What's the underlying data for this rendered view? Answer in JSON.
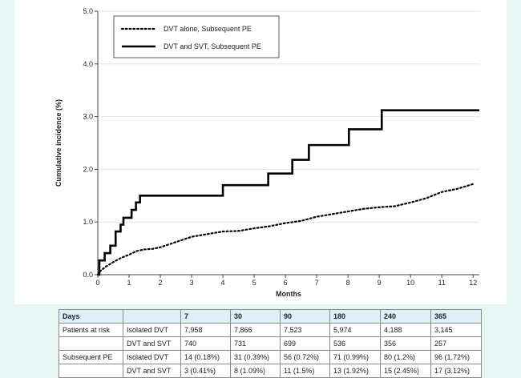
{
  "chart_data": {
    "type": "line",
    "xlabel": "Months",
    "ylabel": "Cumulative incidence (%)",
    "xlim": [
      0,
      12.2
    ],
    "ylim": [
      0,
      5.0
    ],
    "x_ticks": [
      "0",
      "1",
      "2",
      "3",
      "4",
      "5",
      "6",
      "7",
      "8",
      "9",
      "10",
      "11",
      "12"
    ],
    "y_ticks": [
      "0.0",
      "1.0",
      "2.0",
      "3.0",
      "4.0",
      "5.0"
    ],
    "legend_position": "top-left",
    "series": [
      {
        "name": "DVT alone, Subsequent PE",
        "style": "dotted",
        "color": "#000000",
        "points": [
          [
            0,
            0
          ],
          [
            0.1,
            0.08
          ],
          [
            0.25,
            0.15
          ],
          [
            0.5,
            0.24
          ],
          [
            0.75,
            0.32
          ],
          [
            1.0,
            0.38
          ],
          [
            1.25,
            0.45
          ],
          [
            1.5,
            0.48
          ],
          [
            1.75,
            0.49
          ],
          [
            2.0,
            0.52
          ],
          [
            2.5,
            0.62
          ],
          [
            3.0,
            0.72
          ],
          [
            3.5,
            0.77
          ],
          [
            4.0,
            0.82
          ],
          [
            4.5,
            0.83
          ],
          [
            5.0,
            0.88
          ],
          [
            5.5,
            0.92
          ],
          [
            6.0,
            0.98
          ],
          [
            6.5,
            1.02
          ],
          [
            7.0,
            1.1
          ],
          [
            7.5,
            1.15
          ],
          [
            8.0,
            1.2
          ],
          [
            8.5,
            1.25
          ],
          [
            9.0,
            1.28
          ],
          [
            9.5,
            1.3
          ],
          [
            10.0,
            1.37
          ],
          [
            10.5,
            1.45
          ],
          [
            11.0,
            1.57
          ],
          [
            11.5,
            1.63
          ],
          [
            12.0,
            1.72
          ]
        ]
      },
      {
        "name": "DVT and SVT, Subsequent PE",
        "style": "solid",
        "color": "#000000",
        "steps": [
          [
            0,
            0
          ],
          [
            0.05,
            0.27
          ],
          [
            0.22,
            0.41
          ],
          [
            0.4,
            0.55
          ],
          [
            0.57,
            0.82
          ],
          [
            0.73,
            0.95
          ],
          [
            0.82,
            1.08
          ],
          [
            1.08,
            1.23
          ],
          [
            1.22,
            1.37
          ],
          [
            1.35,
            1.5
          ],
          [
            4.0,
            1.7
          ],
          [
            5.45,
            1.92
          ],
          [
            6.22,
            2.18
          ],
          [
            6.75,
            2.46
          ],
          [
            8.03,
            2.76
          ],
          [
            9.08,
            3.12
          ],
          [
            12.2,
            3.12
          ]
        ]
      }
    ]
  },
  "table": {
    "header": [
      "Days",
      "",
      "7",
      "30",
      "90",
      "180",
      "240",
      "365"
    ],
    "rows": [
      [
        "Patients at risk",
        "Isolated DVT",
        "7,958",
        "7,866",
        "7,523",
        "5,974",
        "4,188",
        "3,145"
      ],
      [
        "",
        "DVT and SVT",
        "740",
        "731",
        "699",
        "536",
        "356",
        "257"
      ],
      [
        "Subsequent PE",
        "Isolated DVT",
        "14 (0.18%)",
        "31 (0.39%)",
        "56 (0.72%)",
        "71 (0.99%)",
        "80 (1.2%)",
        "96 (1.72%)"
      ],
      [
        "",
        "DVT and SVT",
        "3 (0.41%)",
        "8 (1.09%)",
        "11 (1.5%)",
        "13 (1.92%)",
        "15 (2.45%)",
        "17 (3.12%)"
      ]
    ]
  }
}
